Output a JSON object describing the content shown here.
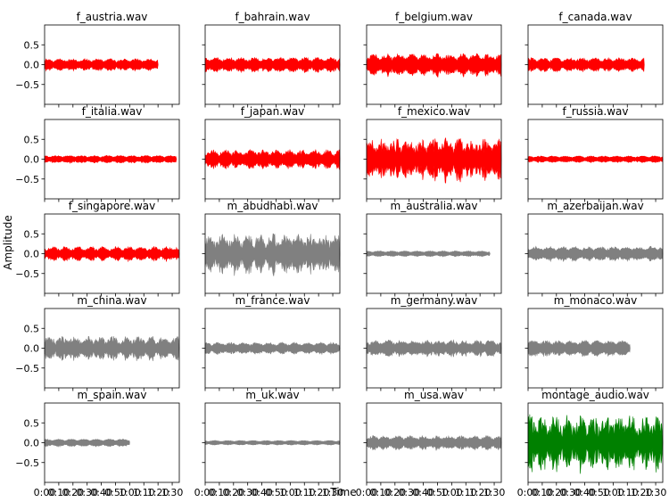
{
  "figure": {
    "ylabel": "Amplitude",
    "xlabel": "Time"
  },
  "colors": {
    "female": "#ff0000",
    "male": "#808080",
    "montage": "#008000"
  },
  "chart_data": {
    "type": "line",
    "layout": "5x4 grid of waveform subplots, shared x and y axes",
    "xlabel": "Time",
    "ylabel": "Amplitude",
    "x_ticks": [
      "0:00",
      "0:10",
      "0:20",
      "0:30",
      "0:40",
      "0:50",
      "1:00",
      "1:10",
      "1:20",
      "1:30"
    ],
    "x_range_seconds": [
      0,
      95
    ],
    "y_ticks": [
      "0.5",
      "0.0",
      "−0.5"
    ],
    "y_tick_values": [
      0.5,
      0.0,
      -0.5
    ],
    "ylim": [
      -1.0,
      1.0
    ],
    "grid": false,
    "legend": "none",
    "panels": [
      {
        "title": "f_austria.wav",
        "color": "#ff0000",
        "duration_s": 80,
        "peak": 0.12,
        "variation": 0.25,
        "seed": 1
      },
      {
        "title": "f_bahrain.wav",
        "color": "#ff0000",
        "duration_s": 95,
        "peak": 0.15,
        "variation": 0.25,
        "seed": 2
      },
      {
        "title": "f_belgium.wav",
        "color": "#ff0000",
        "duration_s": 95,
        "peak": 0.22,
        "variation": 0.3,
        "seed": 3
      },
      {
        "title": "f_canada.wav",
        "color": "#ff0000",
        "duration_s": 82,
        "peak": 0.14,
        "variation": 0.25,
        "seed": 4
      },
      {
        "title": "f_italia.wav",
        "color": "#ff0000",
        "duration_s": 93,
        "peak": 0.08,
        "variation": 0.2,
        "seed": 5
      },
      {
        "title": "f_japan.wav",
        "color": "#ff0000",
        "duration_s": 95,
        "peak": 0.18,
        "variation": 0.35,
        "seed": 6
      },
      {
        "title": "f_mexico.wav",
        "color": "#ff0000",
        "duration_s": 95,
        "peak": 0.35,
        "variation": 0.55,
        "seed": 7
      },
      {
        "title": "f_russia.wav",
        "color": "#ff0000",
        "duration_s": 95,
        "peak": 0.07,
        "variation": 0.2,
        "seed": 8
      },
      {
        "title": "f_singapore.wav",
        "color": "#ff0000",
        "duration_s": 95,
        "peak": 0.14,
        "variation": 0.3,
        "seed": 9
      },
      {
        "title": "m_abudhabi.wav",
        "color": "#808080",
        "duration_s": 95,
        "peak": 0.35,
        "variation": 0.45,
        "seed": 10
      },
      {
        "title": "m_australia.wav",
        "color": "#808080",
        "duration_s": 87,
        "peak": 0.06,
        "variation": 0.15,
        "seed": 11
      },
      {
        "title": "m_azerbaijan.wav",
        "color": "#808080",
        "duration_s": 95,
        "peak": 0.15,
        "variation": 0.25,
        "seed": 12
      },
      {
        "title": "m_china.wav",
        "color": "#808080",
        "duration_s": 95,
        "peak": 0.22,
        "variation": 0.4,
        "seed": 13
      },
      {
        "title": "m_france.wav",
        "color": "#808080",
        "duration_s": 95,
        "peak": 0.12,
        "variation": 0.25,
        "seed": 14
      },
      {
        "title": "m_germany.wav",
        "color": "#808080",
        "duration_s": 95,
        "peak": 0.16,
        "variation": 0.3,
        "seed": 15
      },
      {
        "title": "m_monaco.wav",
        "color": "#808080",
        "duration_s": 72,
        "peak": 0.16,
        "variation": 0.25,
        "seed": 16
      },
      {
        "title": "m_spain.wav",
        "color": "#808080",
        "duration_s": 60,
        "peak": 0.08,
        "variation": 0.15,
        "seed": 17
      },
      {
        "title": "m_uk.wav",
        "color": "#808080",
        "duration_s": 95,
        "peak": 0.05,
        "variation": 0.1,
        "seed": 18
      },
      {
        "title": "m_usa.wav",
        "color": "#808080",
        "duration_s": 95,
        "peak": 0.14,
        "variation": 0.3,
        "seed": 19
      },
      {
        "title": "montage_audio.wav",
        "color": "#008000",
        "duration_s": 95,
        "peak": 0.45,
        "variation": 0.6,
        "seed": 20
      }
    ]
  }
}
